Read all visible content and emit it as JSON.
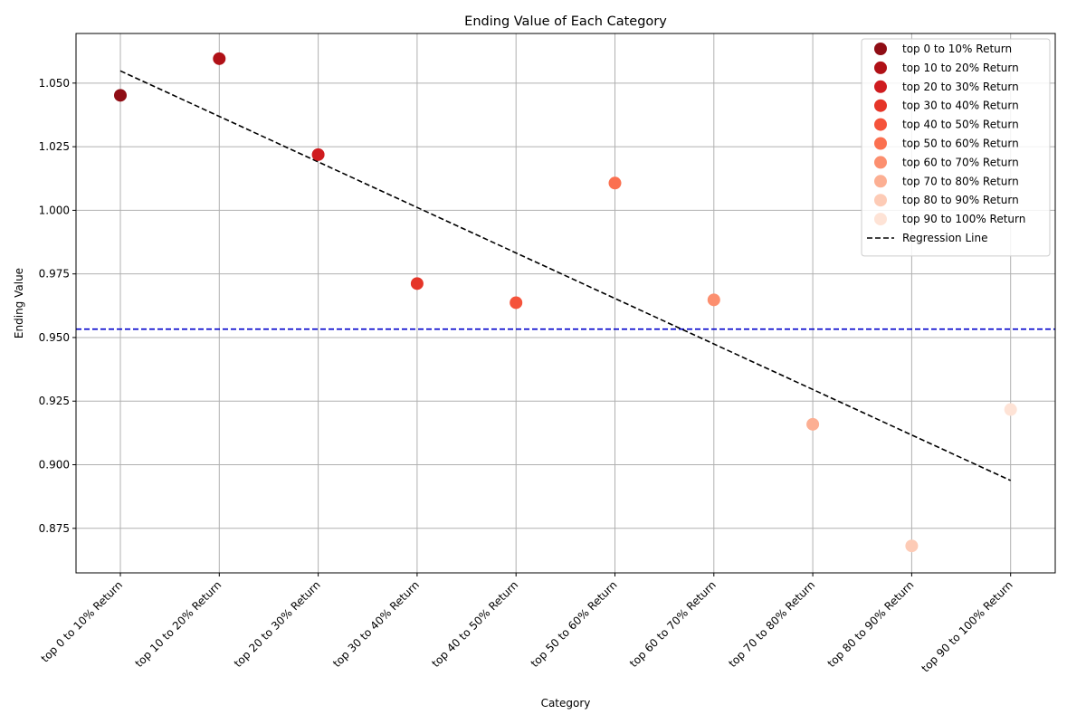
{
  "chart_data": {
    "type": "scatter",
    "title": "Ending Value of Each Category",
    "xlabel": "Category",
    "ylabel": "Ending Value",
    "categories": [
      "top 0 to 10% Return",
      "top 10 to 20% Return",
      "top 20 to 30% Return",
      "top 30 to 40% Return",
      "top 40 to 50% Return",
      "top 50 to 60% Return",
      "top 60 to 70% Return",
      "top 70 to 80% Return",
      "top 80 to 90% Return",
      "top 90 to 100% Return"
    ],
    "values": [
      1.0452,
      1.0596,
      1.0219,
      0.9712,
      0.9637,
      1.0107,
      0.9648,
      0.9159,
      0.8681,
      0.9217
    ],
    "colors": [
      "#8f0d15",
      "#b01117",
      "#cf1c1f",
      "#e53528",
      "#f5533b",
      "#fb7050",
      "#fc8f6f",
      "#fcaf93",
      "#fdcbb6",
      "#fee3d6"
    ],
    "regression_line": {
      "label": "Regression Line",
      "start": 1.0548,
      "end": 0.8938,
      "color": "#000000"
    },
    "reference_line": {
      "y": 0.9533,
      "color": "#0000cc"
    },
    "ylim": [
      0.8575,
      1.0695
    ],
    "yticks": [
      "0.875",
      "0.900",
      "0.925",
      "0.950",
      "0.975",
      "1.000",
      "1.025",
      "1.050"
    ],
    "grid": true,
    "legend_position": "top-right"
  }
}
